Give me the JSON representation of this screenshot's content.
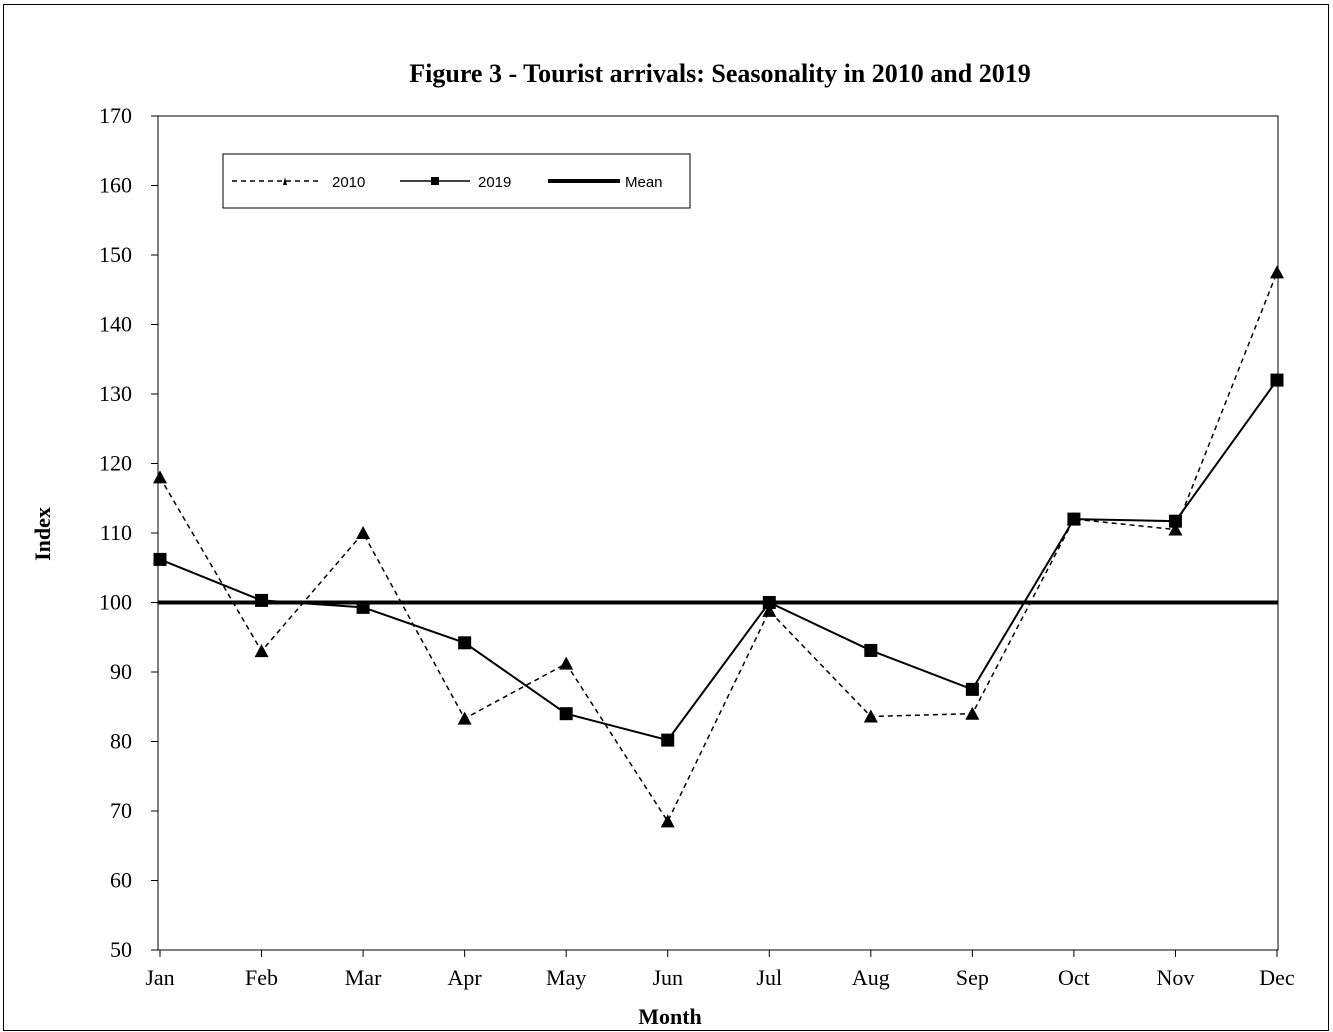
{
  "chart_data": {
    "type": "line",
    "title": "Figure 3 - Tourist arrivals: Seasonality in 2010 and 2019",
    "xlabel": "Month",
    "ylabel": "Index",
    "categories": [
      "Jan",
      "Feb",
      "Mar",
      "Apr",
      "May",
      "Jun",
      "Jul",
      "Aug",
      "Sep",
      "Oct",
      "Nov",
      "Dec"
    ],
    "ylim": [
      50,
      170
    ],
    "yticks": [
      50,
      60,
      70,
      80,
      90,
      100,
      110,
      120,
      130,
      140,
      150,
      160,
      170
    ],
    "grid": false,
    "legend_position": "top-left",
    "series": [
      {
        "name": "2010",
        "marker": "triangle",
        "line": "dashed",
        "color": "#000000",
        "values": [
          118,
          93,
          110,
          83.3,
          91.2,
          68.5,
          98.8,
          83.6,
          84,
          112,
          110.5,
          147.5
        ]
      },
      {
        "name": "2019",
        "marker": "square",
        "line": "solid",
        "color": "#000000",
        "values": [
          106.2,
          100.3,
          99.3,
          94.2,
          84,
          80.2,
          100,
          93.1,
          87.5,
          112,
          111.7,
          132
        ]
      },
      {
        "name": "Mean",
        "marker": "none",
        "line": "thick",
        "color": "#000000",
        "values": [
          100,
          100,
          100,
          100,
          100,
          100,
          100,
          100,
          100,
          100,
          100,
          100
        ]
      }
    ]
  }
}
